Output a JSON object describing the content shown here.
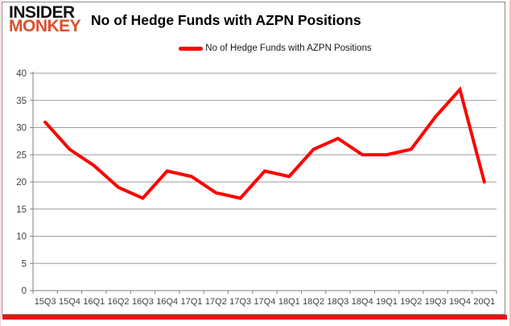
{
  "logo": {
    "line1": "INSIDER",
    "line2": "MONKEY",
    "line1_color": "#131313",
    "line2_color": "#dd4f2b"
  },
  "header": {
    "title": "No of Hedge Funds with AZPN Positions"
  },
  "legend": {
    "label": "No of Hedge Funds with AZPN Positions",
    "swatch_color": "#fe0000"
  },
  "colors": {
    "series_red": "#fe0000",
    "gridline_gray": "#9a9a9a",
    "axis_gray": "#808080",
    "tick_text": "#3f3f3f",
    "bottom_bar_red": "#e81414"
  },
  "chart_data": {
    "type": "line",
    "title": "No of Hedge Funds with AZPN Positions",
    "categories": [
      "15Q3",
      "15Q4",
      "16Q1",
      "16Q2",
      "16Q3",
      "16Q4",
      "17Q1",
      "17Q2",
      "17Q3",
      "17Q4",
      "18Q1",
      "18Q2",
      "18Q3",
      "18Q4",
      "19Q1",
      "19Q2",
      "19Q3",
      "19Q4",
      "20Q1"
    ],
    "series": [
      {
        "name": "No of Hedge Funds with AZPN Positions",
        "color": "#fe0000",
        "values": [
          31,
          26,
          23,
          19,
          17,
          22,
          21,
          18,
          17,
          22,
          21,
          26,
          28,
          25,
          25,
          26,
          32,
          37,
          20
        ]
      }
    ],
    "xlabel": "",
    "ylabel": "",
    "ylim": [
      0,
      40
    ],
    "yticks": [
      0,
      5,
      10,
      15,
      20,
      25,
      30,
      35,
      40
    ],
    "grid": true,
    "legend_position": "top-center"
  }
}
